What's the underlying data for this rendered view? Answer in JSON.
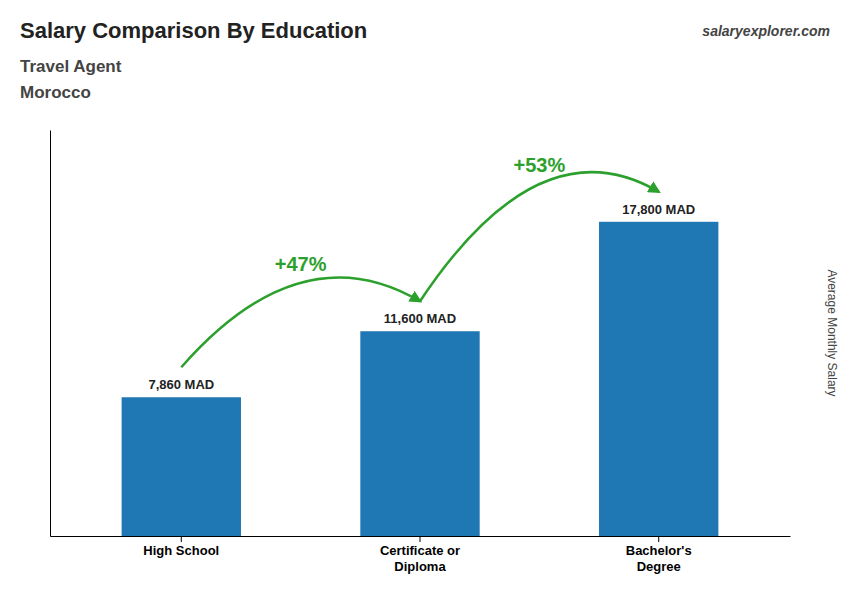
{
  "chart_data": {
    "type": "bar",
    "title": "Salary Comparison By Education",
    "subtitle": [
      "Travel Agent",
      "Morocco"
    ],
    "source": "salaryexplorer.com",
    "ylabel": "Average Monthly Salary",
    "categories": [
      "High School",
      "Certificate or\nDiploma",
      "Bachelor's\nDegree"
    ],
    "values": [
      7860,
      11600,
      17800
    ],
    "value_labels": [
      "7,860 MAD",
      "11,600 MAD",
      "17,800 MAD"
    ],
    "data_labels": true,
    "annotations": [
      {
        "text": "+47%"
      },
      {
        "text": "+53%"
      }
    ],
    "ylim": [
      0,
      23000
    ],
    "grid": false,
    "tick_labels": "x"
  }
}
